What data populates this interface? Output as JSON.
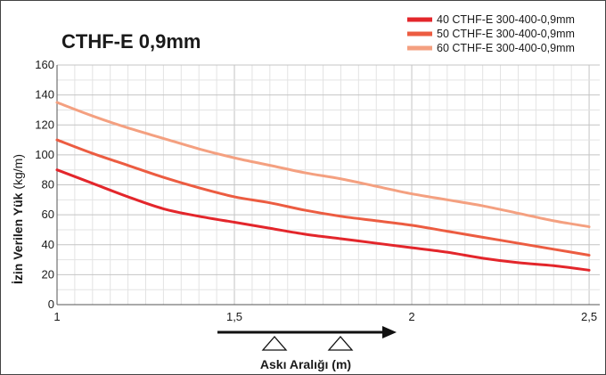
{
  "chart_data": {
    "type": "line",
    "title": "CTHF-E 0,9mm",
    "xlabel": "Askı Aralığı (m)",
    "ylabel": {
      "bold": "İzin Verilen Yük",
      "unit": " (kg/m)"
    },
    "x": [
      1,
      1.1,
      1.2,
      1.3,
      1.4,
      1.5,
      1.6,
      1.7,
      1.8,
      1.9,
      2,
      2.1,
      2.2,
      2.3,
      2.4,
      2.5
    ],
    "xlim": [
      1,
      2.53
    ],
    "ylim": [
      0,
      160
    ],
    "x_ticks": [
      1,
      1.5,
      2,
      2.5
    ],
    "x_tick_labels": [
      "1",
      "1,5",
      "2",
      "2,5"
    ],
    "y_ticks": [
      0,
      20,
      40,
      60,
      80,
      100,
      120,
      140,
      160
    ],
    "y_tick_labels": [
      "0",
      "20",
      "40",
      "60",
      "80",
      "100",
      "120",
      "140",
      "160"
    ],
    "grid": true,
    "legend_position": "top-right",
    "series": [
      {
        "name": "40 CTHF-E 300-400-0,9mm",
        "color": "#e3262b",
        "values": [
          90,
          81,
          72,
          64,
          59,
          55,
          51,
          47,
          44,
          41,
          38,
          35,
          31,
          28,
          26,
          23
        ]
      },
      {
        "name": "50 CTHF-E 300-400-0,9mm",
        "color": "#ec5c41",
        "values": [
          110,
          101,
          93,
          85,
          78,
          72,
          68,
          63,
          59,
          56,
          53,
          49,
          45,
          41,
          37,
          33
        ]
      },
      {
        "name": "60 CTHF-E 300-400-0,9mm",
        "color": "#f4a080",
        "values": [
          135,
          126,
          118,
          111,
          104,
          98,
          93,
          88,
          84,
          79,
          74,
          70,
          66,
          61,
          56,
          52
        ]
      }
    ]
  }
}
